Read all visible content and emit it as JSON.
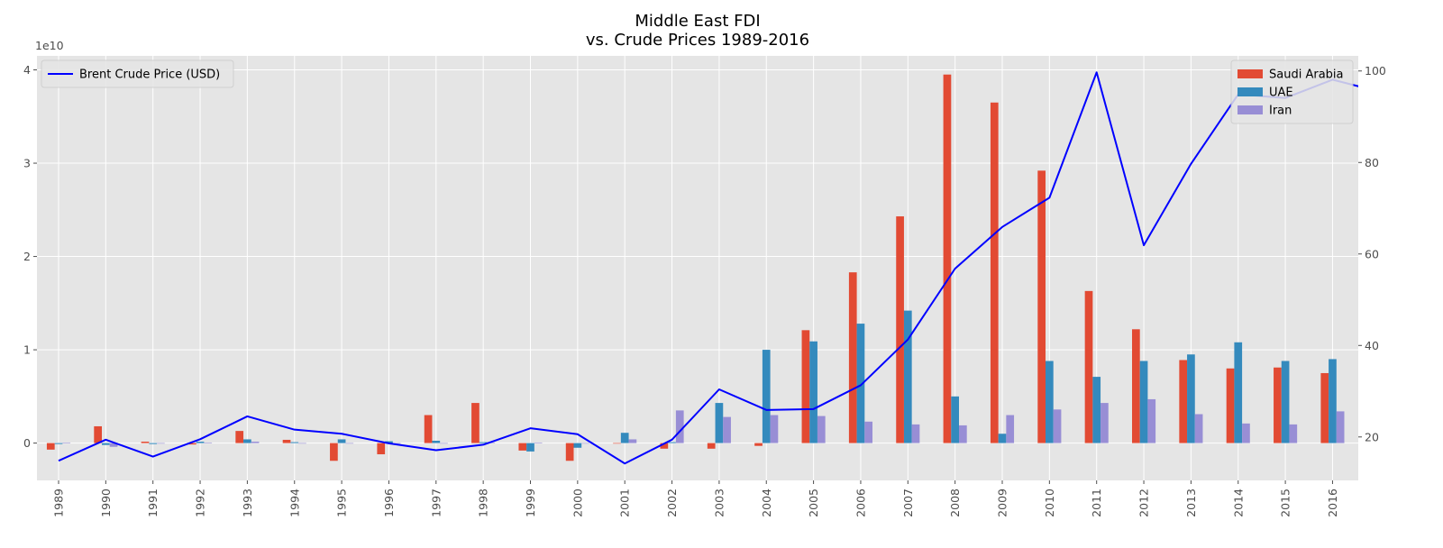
{
  "chart_data": {
    "type": "bar",
    "title_lines": [
      "Middle East FDI",
      "vs. Crude Prices 1989-2016"
    ],
    "categories": [
      "1989",
      "1990",
      "1991",
      "1992",
      "1993",
      "1994",
      "1995",
      "1996",
      "1997",
      "1998",
      "1999",
      "2000",
      "2001",
      "2002",
      "2003",
      "2004",
      "2005",
      "2006",
      "2007",
      "2008",
      "2009",
      "2010",
      "2011",
      "2012",
      "2013",
      "2014",
      "2015",
      "2016"
    ],
    "y_left": {
      "ylim": [
        -4000000000,
        41500000000
      ],
      "ticks": [
        0,
        1,
        2,
        3,
        4
      ],
      "tick_scale": 10000000000,
      "offset_label": "1e10"
    },
    "y_right": {
      "ylim": [
        10.5,
        103.3
      ],
      "ticks": [
        20,
        40,
        60,
        80,
        100
      ]
    },
    "series": [
      {
        "name": "Saudi Arabia",
        "kind": "bar",
        "axis": "left",
        "color": "#E24A33",
        "values": [
          -700000000,
          1800000000,
          150000000,
          -150000000,
          1300000000,
          350000000,
          -1900000000,
          -1200000000,
          3000000000,
          4300000000,
          -800000000,
          -1900000000,
          0,
          -600000000,
          -600000000,
          -300000000,
          12100000000,
          18300000000,
          24300000000,
          39500000000,
          36500000000,
          29200000000,
          16300000000,
          12200000000,
          8900000000,
          8000000000,
          8100000000,
          7500000000
        ]
      },
      {
        "name": "UAE",
        "kind": "bar",
        "axis": "left",
        "color": "#348ABD",
        "values": [
          -100000000,
          -200000000,
          -100000000,
          150000000,
          400000000,
          100000000,
          400000000,
          200000000,
          250000000,
          100000000,
          -900000000,
          -500000000,
          1100000000,
          100000000,
          4300000000,
          10000000000,
          10900000000,
          12800000000,
          14200000000,
          5000000000,
          1000000000,
          8800000000,
          7100000000,
          8800000000,
          9500000000,
          10800000000,
          8800000000,
          9000000000
        ]
      },
      {
        "name": "Iran",
        "kind": "bar",
        "axis": "left",
        "color": "#988ED5",
        "values": [
          50000000,
          -400000000,
          0,
          50000000,
          150000000,
          0,
          0,
          0,
          0,
          50000000,
          50000000,
          0,
          400000000,
          3500000000,
          2800000000,
          3000000000,
          2900000000,
          2300000000,
          2000000000,
          1900000000,
          3000000000,
          3600000000,
          4300000000,
          4700000000,
          3100000000,
          2100000000,
          2000000000,
          3400000000
        ]
      },
      {
        "name": "Brent Crude Price (USD)",
        "kind": "line",
        "axis": "right",
        "color": "#0000FF",
        "values": [
          14.8,
          19.4,
          15.7,
          19.5,
          24.5,
          21.6,
          20.7,
          18.6,
          17.1,
          18.3,
          21.9,
          20.6,
          14.2,
          19.4,
          30.4,
          25.9,
          26.1,
          31.3,
          41.3,
          56.8,
          65.9,
          72.3,
          99.7,
          61.9,
          79.7,
          94.9,
          94.1,
          98.1
        ]
      }
    ],
    "grid": true,
    "legends": [
      {
        "placement": "top-left",
        "items": [
          "Brent Crude Price (USD)"
        ]
      },
      {
        "placement": "top-right",
        "items": [
          "Saudi Arabia",
          "UAE",
          "Iran"
        ]
      }
    ]
  }
}
